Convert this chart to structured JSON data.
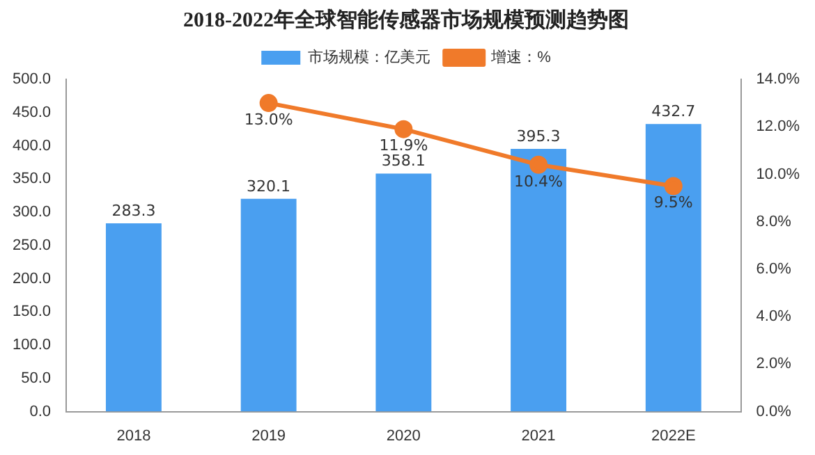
{
  "chart_data": {
    "type": "bar",
    "title": "2018-2022年全球智能传感器市场规模预测趋势图",
    "categories": [
      "2018",
      "2019",
      "2020",
      "2021",
      "2022E"
    ],
    "series": [
      {
        "name": "市场规模：亿美元",
        "color": "#4a9ff0",
        "values": [
          283.3,
          320.1,
          358.1,
          395.3,
          432.7
        ]
      },
      {
        "name": "增速：%",
        "type": "line",
        "axis": "y2",
        "color": "#f07a2a",
        "values": [
          null,
          13.0,
          11.9,
          10.4,
          9.5
        ],
        "value_labels": [
          null,
          "13.0%",
          "11.9%",
          "10.4%",
          "9.5%"
        ]
      }
    ],
    "ylim": [
      0,
      500
    ],
    "yticks": [
      {
        "value": 0,
        "label": "0.0"
      },
      {
        "value": 50,
        "label": "50.0"
      },
      {
        "value": 100,
        "label": "100.0"
      },
      {
        "value": 150,
        "label": "150.0"
      },
      {
        "value": 200,
        "label": "200.0"
      },
      {
        "value": 250,
        "label": "250.0"
      },
      {
        "value": 300,
        "label": "300.0"
      },
      {
        "value": 350,
        "label": "350.0"
      },
      {
        "value": 400,
        "label": "400.0"
      },
      {
        "value": 450,
        "label": "450.0"
      },
      {
        "value": 500,
        "label": "500.0"
      }
    ],
    "y2lim": [
      0,
      14
    ],
    "y2ticks": [
      {
        "value": 0,
        "label": "0.0%"
      },
      {
        "value": 2,
        "label": "2.0%"
      },
      {
        "value": 4,
        "label": "4.0%"
      },
      {
        "value": 6,
        "label": "6.0%"
      },
      {
        "value": 8,
        "label": "8.0%"
      },
      {
        "value": 10,
        "label": "10.0%"
      },
      {
        "value": 12,
        "label": "12.0%"
      },
      {
        "value": 14,
        "label": "14.0%"
      }
    ],
    "grid": false,
    "legend": "top",
    "marker": "circle",
    "data_labels": true
  }
}
